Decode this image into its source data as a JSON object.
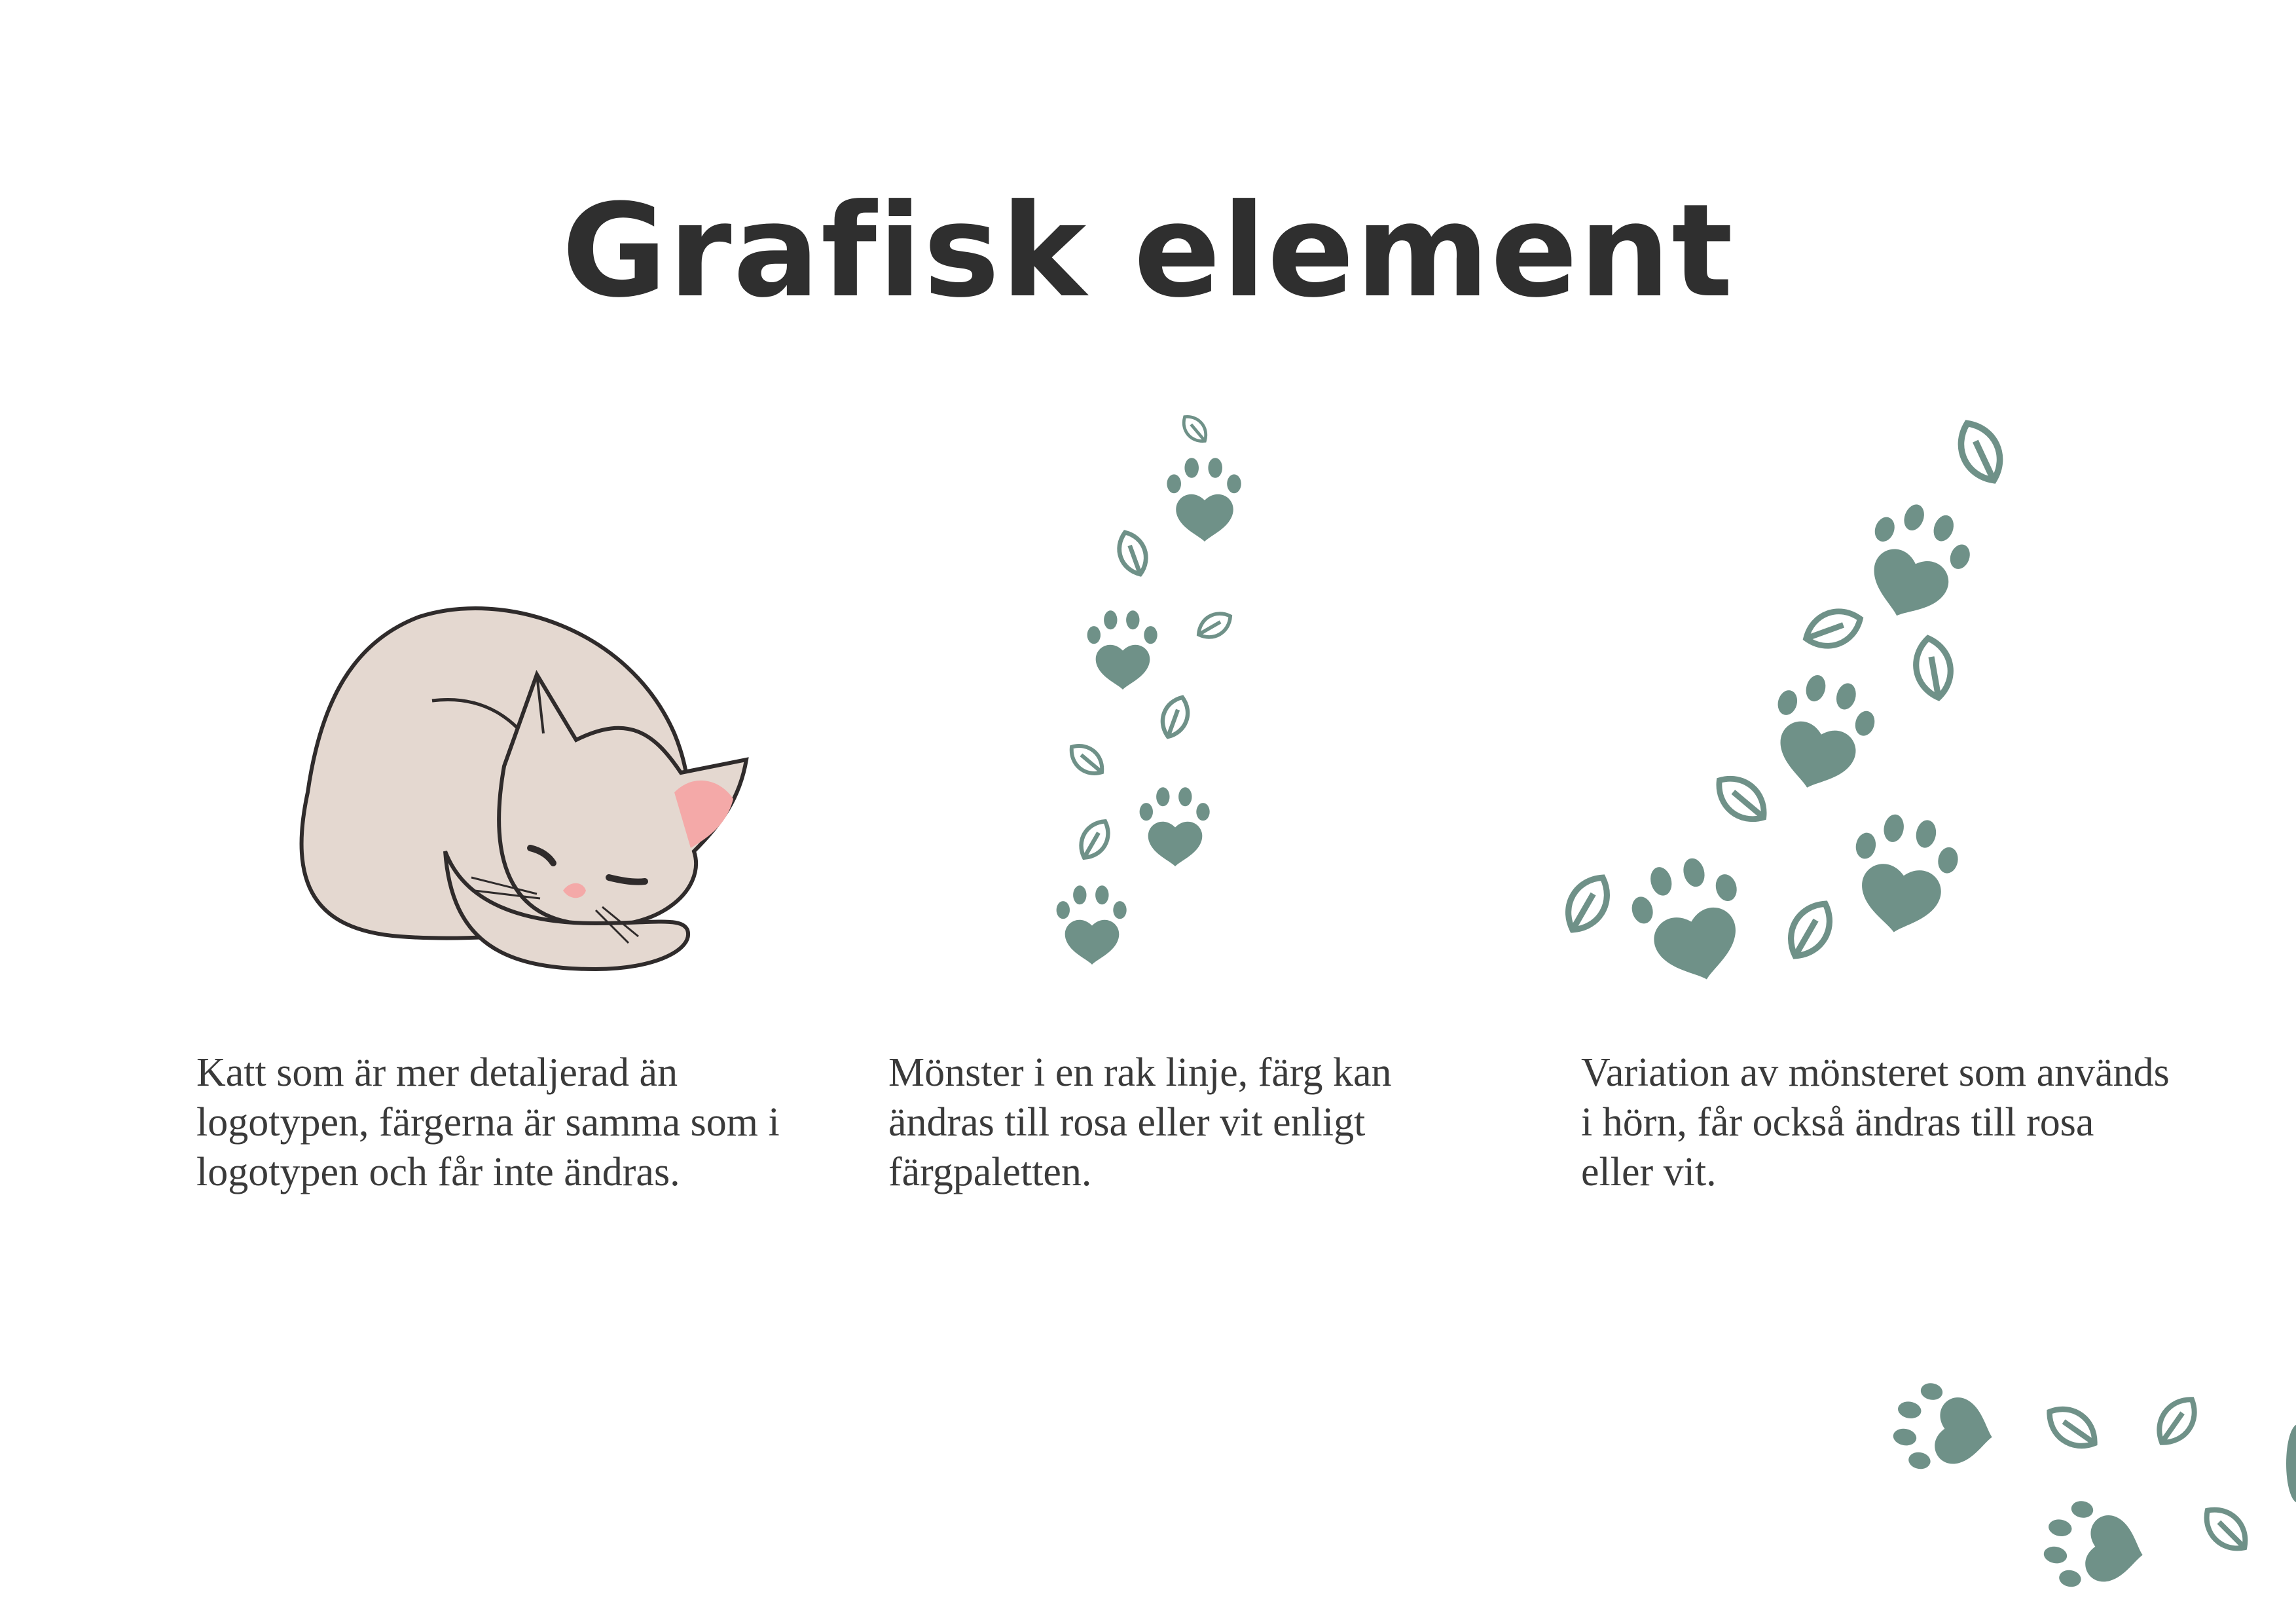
{
  "page": {
    "title": "Grafisk element",
    "colors": {
      "green": "#6f9188",
      "cat_body": "#e4d8d0",
      "cat_ear": "#f4a9a8",
      "outline": "#2f2b2b",
      "text": "#3a3a3a"
    }
  },
  "sections": [
    {
      "icon": "sleeping-cat-icon",
      "text": "Katt som är mer detaljerad än logotypen, färgerna är samma som i logotypen och får inte ändras."
    },
    {
      "icon": "paw-leaf-line-pattern",
      "text": "Mönster i en rak linje, färg kan ändras till rosa eller vit enligt färgpaletten."
    },
    {
      "icon": "paw-leaf-corner-pattern",
      "text": "Variation av mönsteret som används i hörn, får också ändras till rosa eller vit."
    }
  ]
}
